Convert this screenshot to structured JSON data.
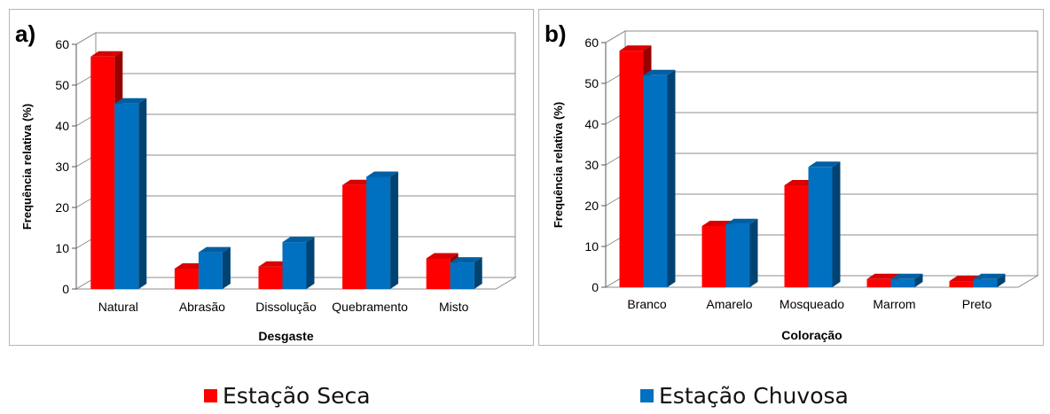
{
  "legend": {
    "series": [
      {
        "name": "Estação Seca",
        "color": "#ff0000"
      },
      {
        "name": "Estação Chuvosa",
        "color": "#0070c0"
      }
    ]
  },
  "chart_data": [
    {
      "panel_label": "a)",
      "type": "bar",
      "title": "",
      "xlabel": "Desgaste",
      "ylabel": "Frequência relativa (%)",
      "categories": [
        "Natural",
        "Abrasão",
        "Dissolução",
        "Quebramento",
        "Misto"
      ],
      "series": [
        {
          "name": "Estação Seca",
          "values": [
            57,
            5,
            5.5,
            25.5,
            7.5
          ]
        },
        {
          "name": "Estação Chuvosa",
          "values": [
            45.5,
            9,
            11.5,
            27.5,
            6.5
          ]
        }
      ],
      "ylim": [
        0,
        60
      ],
      "yticks": [
        0,
        10,
        20,
        30,
        40,
        50,
        60
      ],
      "grid": true,
      "legend_position": "bottom"
    },
    {
      "panel_label": "b)",
      "type": "bar",
      "title": "",
      "xlabel": "Coloração",
      "ylabel": "Frequência relativa (%)",
      "categories": [
        "Branco",
        "Amarelo",
        "Mosqueado",
        "Marrom",
        "Preto"
      ],
      "series": [
        {
          "name": "Estação Seca",
          "values": [
            58,
            15,
            25,
            2,
            1.5
          ]
        },
        {
          "name": "Estação Chuvosa",
          "values": [
            52,
            15.5,
            29.5,
            2,
            2
          ]
        }
      ],
      "ylim": [
        0,
        60
      ],
      "yticks": [
        0,
        10,
        20,
        30,
        40,
        50,
        60
      ],
      "grid": true,
      "legend_position": "bottom"
    }
  ]
}
